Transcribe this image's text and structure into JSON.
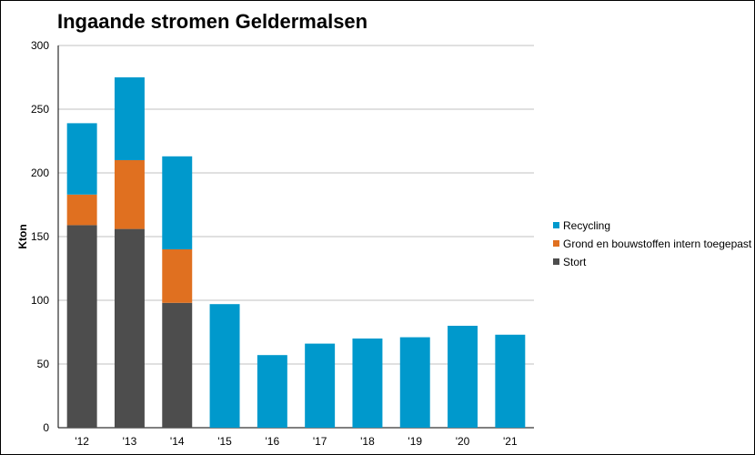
{
  "chart_data": {
    "type": "bar",
    "stacked": true,
    "title": "Ingaande stromen Geldermalsen",
    "xlabel": "",
    "ylabel": "Kton",
    "ylim": [
      0,
      300
    ],
    "yticks": [
      0,
      50,
      100,
      150,
      200,
      250,
      300
    ],
    "grid": true,
    "legend_position": "right",
    "categories": [
      "'12",
      "'13",
      "'14",
      "'15",
      "'16",
      "'17",
      "'18",
      "'19",
      "'20",
      "'21"
    ],
    "series": [
      {
        "name": "Stort",
        "color": "#4d4d4d",
        "values": [
          159,
          156,
          98,
          0,
          0,
          0,
          0,
          0,
          0,
          0
        ]
      },
      {
        "name": "Grond en bouwstoffen intern toegepast",
        "color": "#e07020",
        "values": [
          24,
          54,
          42,
          0,
          0,
          0,
          0,
          0,
          0,
          0
        ]
      },
      {
        "name": "Recycling",
        "color": "#0099cc",
        "values": [
          56,
          65,
          73,
          97,
          57,
          66,
          70,
          71,
          80,
          73
        ]
      }
    ],
    "legend_order": [
      "Recycling",
      "Grond en bouwstoffen intern toegepast",
      "Stort"
    ]
  }
}
